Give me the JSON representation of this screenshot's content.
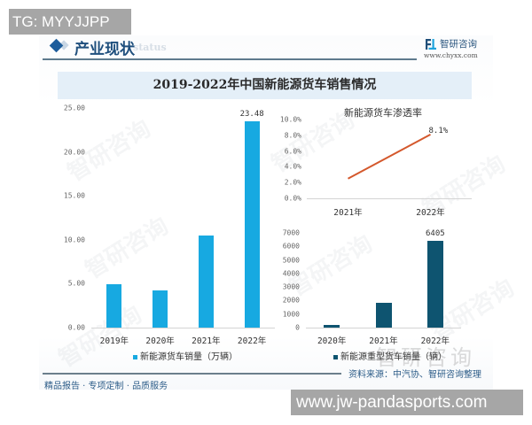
{
  "overlays": {
    "top_left_tag": "TG: MYYJJPP",
    "bottom_right_url": "www.jw-pandasports.com"
  },
  "header": {
    "section_title": "产业现状",
    "section_title_en_watermark": "status",
    "brand_name": "智研咨询",
    "brand_url": "www.chyxx.com"
  },
  "figure_title": "2019-2022年中国新能源货车销售情况",
  "watermark_text": "智研咨询",
  "footer": {
    "source": "资料来源：中汽协、智研咨询整理",
    "slogan": "精品报告 · 专项定制 · 品质服务"
  },
  "colors": {
    "light_bar": "#17a9e1",
    "dark_bar": "#0e5470",
    "line": "#d4582c",
    "title_band": "#e4eff8",
    "brand_blue": "#1d5c9b",
    "overlay_gray": "#a6a6a6"
  },
  "chart_data": [
    {
      "type": "bar",
      "title": "",
      "categories": [
        "2019年",
        "2020年",
        "2021年",
        "2022年"
      ],
      "values": [
        4.9,
        4.2,
        10.5,
        23.48
      ],
      "data_labels": [
        "",
        "",
        "",
        "23.48"
      ],
      "series_name": "新能源货车销量（万辆）",
      "xlabel": "",
      "ylabel": "",
      "ylim": [
        0,
        25
      ],
      "yticks": [
        "0.00",
        "5.00",
        "10.00",
        "15.00",
        "20.00",
        "25.00"
      ],
      "grid": false,
      "legend_position": "bottom",
      "color": "#17a9e1"
    },
    {
      "type": "line",
      "title": "新能源货车渗透率",
      "categories": [
        "2021年",
        "2022年"
      ],
      "values": [
        2.5,
        8.1
      ],
      "data_labels": [
        "",
        "8.1%"
      ],
      "series_name": "新能源货车渗透率",
      "xlabel": "",
      "ylabel": "",
      "ylim": [
        0,
        10
      ],
      "yticks": [
        "0.0%",
        "2.0%",
        "4.0%",
        "6.0%",
        "8.0%",
        "10.0%"
      ],
      "grid": false,
      "legend_position": "none",
      "color": "#d4582c"
    },
    {
      "type": "bar",
      "title": "",
      "categories": [
        "2020年",
        "2021年",
        "2022年"
      ],
      "values": [
        180,
        1800,
        6405
      ],
      "data_labels": [
        "",
        "",
        "6405"
      ],
      "series_name": "新能源重型货车销量（辆）",
      "xlabel": "",
      "ylabel": "",
      "ylim": [
        0,
        7000
      ],
      "yticks": [
        "0",
        "1000",
        "2000",
        "3000",
        "4000",
        "5000",
        "6000",
        "7000"
      ],
      "grid": false,
      "legend_position": "bottom",
      "color": "#0e5470"
    }
  ]
}
